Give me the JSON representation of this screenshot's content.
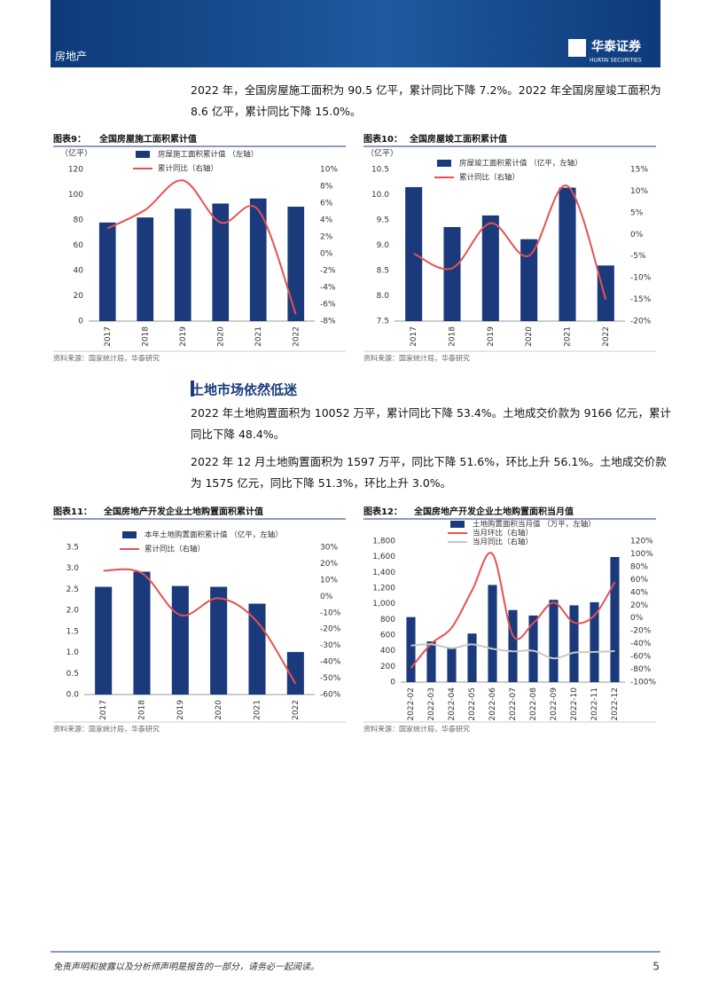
{
  "header": {
    "section": "房地产",
    "logo": "华泰证券",
    "logo_en": "HUATAI SECURITIES"
  },
  "paragraphs": [
    "2022 年，全国房屋施工面积为 90.5 亿平，累计同比下降 7.2%。2022 年全国房屋竣工面积为 8.6 亿平，累计同比下降 15.0%。"
  ],
  "section_title": "土地市场依然低迷",
  "paragraphs2": [
    "2022 年土地购置面积为 10052 万平，累计同比下降 53.4%。土地成交价款为 9166 亿元，累计同比下降 48.4%。",
    "2022 年 12 月土地购置面积为 1597 万平，同比下降 51.6%，环比上升 56.1%。土地成交价款为 1575 亿元，同比下降 51.3%，环比上升 3.0%。"
  ],
  "chart_data": [
    {
      "type": "bar",
      "figure_label": "图表9：",
      "title": "全国房屋施工面积累计值",
      "y_unit": "（亿平）",
      "source": "资料来源：国家统计局，华泰研究",
      "categories": [
        "2017",
        "2018",
        "2019",
        "2020",
        "2021",
        "2022"
      ],
      "series": [
        {
          "name": "房屋施工面积累计值 （左轴）",
          "color": "#1a3a7c",
          "values": [
            78,
            82,
            89,
            93,
            97,
            90.5
          ]
        },
        {
          "name": "累计同比（右轴）",
          "color": "#e8504f",
          "axis": "y2",
          "values": [
            3.0,
            5.2,
            8.7,
            3.7,
            5.2,
            -7.2
          ]
        }
      ],
      "ylim": [
        0,
        120
      ],
      "yticks": [
        0,
        20,
        40,
        60,
        80,
        100,
        120
      ],
      "y2lim": [
        -8,
        10
      ],
      "y2ticks": [
        {
          "value": -8,
          "label": "-8%"
        },
        {
          "value": -6,
          "label": "-6%"
        },
        {
          "value": -4,
          "label": "-4%"
        },
        {
          "value": -2,
          "label": "-2%"
        },
        {
          "value": 0,
          "label": "0%"
        },
        {
          "value": 2,
          "label": "2%"
        },
        {
          "value": 4,
          "label": "4%"
        },
        {
          "value": 6,
          "label": "6%"
        },
        {
          "value": 8,
          "label": "8%"
        },
        {
          "value": 10,
          "label": "10%"
        }
      ]
    },
    {
      "type": "bar",
      "figure_label": "图表10：",
      "title": "全国房屋竣工面积累计值",
      "y_unit": "（亿平）",
      "source": "资料来源：国家统计局，华泰研究",
      "categories": [
        "2017",
        "2018",
        "2019",
        "2020",
        "2021",
        "2022"
      ],
      "series": [
        {
          "name": "房屋竣工面积累计值 （亿平，左轴）",
          "color": "#1a3a7c",
          "values": [
            10.15,
            9.36,
            9.59,
            9.12,
            10.14,
            8.6
          ]
        },
        {
          "name": "累计同比（右轴）",
          "color": "#e8504f",
          "axis": "y2",
          "values": [
            -4.4,
            -7.8,
            2.6,
            -4.9,
            11.2,
            -15.0
          ]
        }
      ],
      "ylim": [
        7.5,
        10.5
      ],
      "yticks": [
        7.5,
        {
          "value": 8,
          "label": "8.0"
        },
        8.5,
        {
          "value": 9,
          "label": "9.0"
        },
        9.5,
        {
          "value": 10,
          "label": "10.0"
        },
        10.5
      ],
      "y2lim": [
        -20,
        15
      ],
      "y2ticks": [
        {
          "value": -20,
          "label": "-20%"
        },
        {
          "value": -15,
          "label": "-15%"
        },
        {
          "value": -10,
          "label": "-10%"
        },
        {
          "value": -5,
          "label": "-5%"
        },
        {
          "value": 0,
          "label": "0%"
        },
        {
          "value": 5,
          "label": "5%"
        },
        {
          "value": 10,
          "label": "10%"
        },
        {
          "value": 15,
          "label": "15%"
        }
      ]
    },
    {
      "type": "bar",
      "figure_label": "图表11：",
      "title": "全国房地产开发企业土地购置面积累计值",
      "source": "资料来源：国家统计局，华泰研究",
      "categories": [
        "2017",
        "2018",
        "2019",
        "2020",
        "2021",
        "2022"
      ],
      "series": [
        {
          "name": "本年土地购置面积累计值 （亿平，左轴）",
          "color": "#1a3a7c",
          "values": [
            2.56,
            2.92,
            2.58,
            2.56,
            2.16,
            1.01
          ]
        },
        {
          "name": "累计同比（右轴）",
          "color": "#e8504f",
          "axis": "y2",
          "values": [
            15.7,
            14.2,
            -11.4,
            -1.1,
            -15.5,
            -53.4
          ]
        }
      ],
      "ylim": [
        0,
        3.5
      ],
      "yticks": [
        {
          "value": 0,
          "label": "0.0"
        },
        0.5,
        {
          "value": 1,
          "label": "1.0"
        },
        1.5,
        {
          "value": 2,
          "label": "2.0"
        },
        2.5,
        {
          "value": 3,
          "label": "3.0"
        },
        3.5
      ],
      "y2lim": [
        -60,
        30
      ],
      "y2ticks": [
        {
          "value": -60,
          "label": "-60%"
        },
        {
          "value": -50,
          "label": "-50%"
        },
        {
          "value": -40,
          "label": "-40%"
        },
        {
          "value": -30,
          "label": "-30%"
        },
        {
          "value": -20,
          "label": "-20%"
        },
        {
          "value": -10,
          "label": "-10%"
        },
        {
          "value": 0,
          "label": "0%"
        },
        {
          "value": 10,
          "label": "10%"
        },
        {
          "value": 20,
          "label": "20%"
        },
        {
          "value": 30,
          "label": "30%"
        }
      ]
    },
    {
      "type": "bar",
      "figure_label": "图表12：",
      "title": "全国房地产开发企业土地购置面积当月值",
      "source": "资料来源：国家统计局，华泰研究",
      "categories": [
        "2022-02",
        "2022-03",
        "2022-04",
        "2022-05",
        "2022-06",
        "2022-07",
        "2022-08",
        "2022-09",
        "2022-10",
        "2022-11",
        "2022-12"
      ],
      "series": [
        {
          "name": "土地购置面积当月值 （万平，左轴）",
          "color": "#1a3a7c",
          "values": [
            830,
            520,
            430,
            620,
            1240,
            920,
            850,
            1050,
            980,
            1020,
            1597
          ]
        },
        {
          "name": "当月环比（右轴）",
          "color": "#e8504f",
          "axis": "y2",
          "values": [
            -78,
            -40,
            -15,
            43,
            100,
            -27,
            -8,
            24,
            -7,
            4,
            56.1
          ]
        },
        {
          "name": "当月同比（右轴）",
          "color": "#c8c8c8",
          "axis": "y2",
          "values": [
            -43,
            -41,
            -47,
            -41,
            -48,
            -52,
            -51,
            -63,
            -54,
            -53,
            -51.6
          ]
        }
      ],
      "ylim": [
        0,
        1800
      ],
      "yticks": [
        0,
        200,
        400,
        600,
        800,
        {
          "value": 1000,
          "label": "1,000"
        },
        {
          "value": 1200,
          "label": "1,200"
        },
        {
          "value": 1400,
          "label": "1,400"
        },
        {
          "value": 1600,
          "label": "1,600"
        },
        {
          "value": 1800,
          "label": "1,800"
        }
      ],
      "y2lim": [
        -100,
        120
      ],
      "y2ticks": [
        {
          "value": -100,
          "label": "-100%"
        },
        {
          "value": -80,
          "label": "-80%"
        },
        {
          "value": -60,
          "label": "-60%"
        },
        {
          "value": -40,
          "label": "-40%"
        },
        {
          "value": -20,
          "label": "-20%"
        },
        {
          "value": 0,
          "label": "0%"
        },
        {
          "value": 20,
          "label": "20%"
        },
        {
          "value": 40,
          "label": "40%"
        },
        {
          "value": 60,
          "label": "60%"
        },
        {
          "value": 80,
          "label": "80%"
        },
        {
          "value": 100,
          "label": "100%"
        },
        {
          "value": 120,
          "label": "120%"
        }
      ]
    }
  ],
  "footer": {
    "disclaimer": "免责声明和披露以及分析师声明是报告的一部分，请务必一起阅读。",
    "page": "5"
  }
}
